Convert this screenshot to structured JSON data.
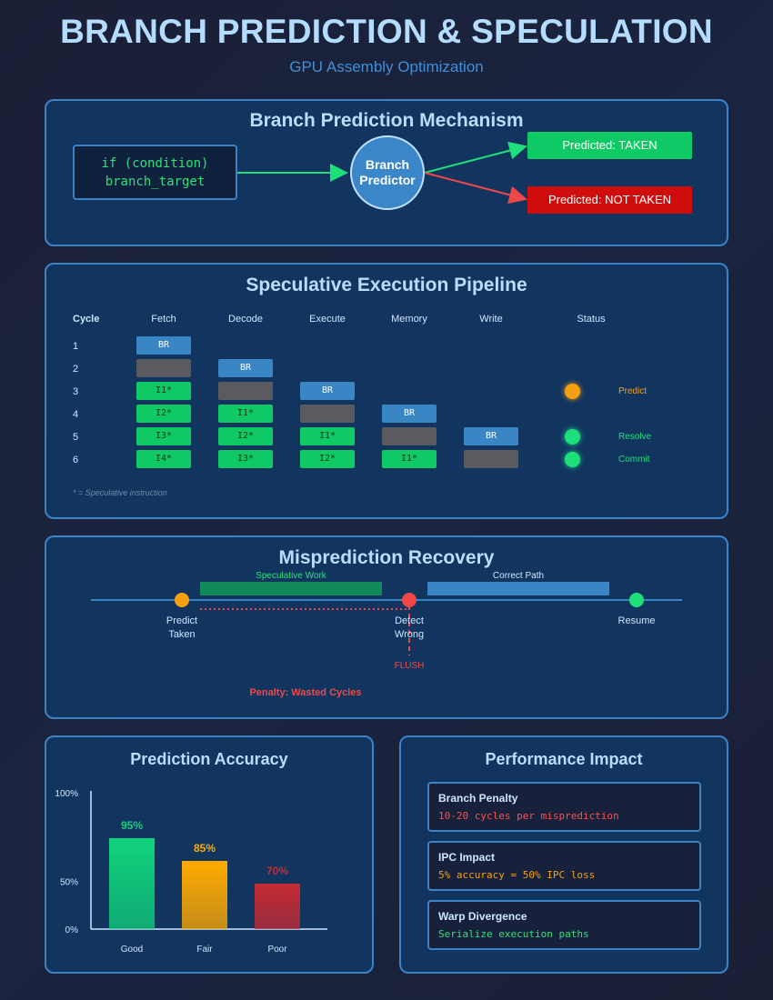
{
  "header": {
    "title": "BRANCH PREDICTION & SPECULATION",
    "subtitle": "GPU Assembly Optimization"
  },
  "mechanism": {
    "title": "Branch Prediction Mechanism",
    "code_line1": "if (condition)",
    "code_line2": "branch_target",
    "predictor_line1": "Branch",
    "predictor_line2": "Predictor",
    "taken": "Predicted: TAKEN",
    "not_taken": "Predicted: NOT TAKEN"
  },
  "pipeline": {
    "title": "Speculative Execution Pipeline",
    "headers": [
      "Cycle",
      "Fetch",
      "Decode",
      "Execute",
      "Memory",
      "Write",
      "Status"
    ],
    "cycles": [
      "1",
      "2",
      "3",
      "4",
      "5",
      "6"
    ],
    "rows": [
      [
        "BR",
        "",
        "",
        "",
        ""
      ],
      [
        "",
        "BR",
        "",
        "",
        ""
      ],
      [
        "I1*",
        "",
        "BR",
        "",
        ""
      ],
      [
        "I2*",
        "I1*",
        "",
        "BR",
        ""
      ],
      [
        "I3*",
        "I2*",
        "I1*",
        "",
        "BR"
      ],
      [
        "I4*",
        "I3*",
        "I2*",
        "I1*",
        ""
      ]
    ],
    "cell_kinds": [
      [
        "br",
        "none",
        "none",
        "none",
        "none"
      ],
      [
        "stall",
        "br",
        "none",
        "none",
        "none"
      ],
      [
        "spec",
        "stall",
        "br",
        "none",
        "none"
      ],
      [
        "spec",
        "spec",
        "stall",
        "br",
        "none"
      ],
      [
        "spec",
        "spec",
        "spec",
        "stall",
        "br"
      ],
      [
        "spec",
        "spec",
        "spec",
        "spec",
        "stall"
      ]
    ],
    "status": [
      {
        "row": 2,
        "label": "Predict",
        "color": "#f5a00f"
      },
      {
        "row": 4,
        "label": "Resolve",
        "color": "#1ee07a"
      },
      {
        "row": 5,
        "label": "Commit",
        "color": "#1ee07a"
      }
    ],
    "note": "* = Speculative instruction"
  },
  "recovery": {
    "title": "Misprediction Recovery",
    "spec_label": "Speculative Work",
    "correct_label": "Correct Path",
    "predict_line1": "Predict",
    "predict_line2": "Taken",
    "detect_line1": "Detect",
    "detect_line2": "Wrong",
    "resume": "Resume",
    "flush": "FLUSH",
    "penalty": "Penalty: Wasted Cycles"
  },
  "accuracy": {
    "title": "Prediction Accuracy"
  },
  "chart_data": {
    "type": "bar",
    "categories": [
      "Good",
      "Fair",
      "Poor"
    ],
    "values": [
      95,
      85,
      70
    ],
    "value_labels": [
      "95%",
      "85%",
      "70%"
    ],
    "colors": [
      "#10d27c",
      "#ffaa00",
      "#c42a33"
    ],
    "yticks": [
      "100%",
      "50%",
      "0%"
    ],
    "title": "Prediction Accuracy",
    "xlabel": "",
    "ylabel": ""
  },
  "impact": {
    "title": "Performance Impact",
    "cards": [
      {
        "title": "Branch Penalty",
        "text": "10-20 cycles per misprediction",
        "color": "#ff4d4d"
      },
      {
        "title": "IPC Impact",
        "text": "5% accuracy = 50% IPC loss",
        "color": "#f5a00f"
      },
      {
        "title": "Warp Divergence",
        "text": "Serialize execution paths",
        "color": "#2ee07a"
      }
    ]
  }
}
